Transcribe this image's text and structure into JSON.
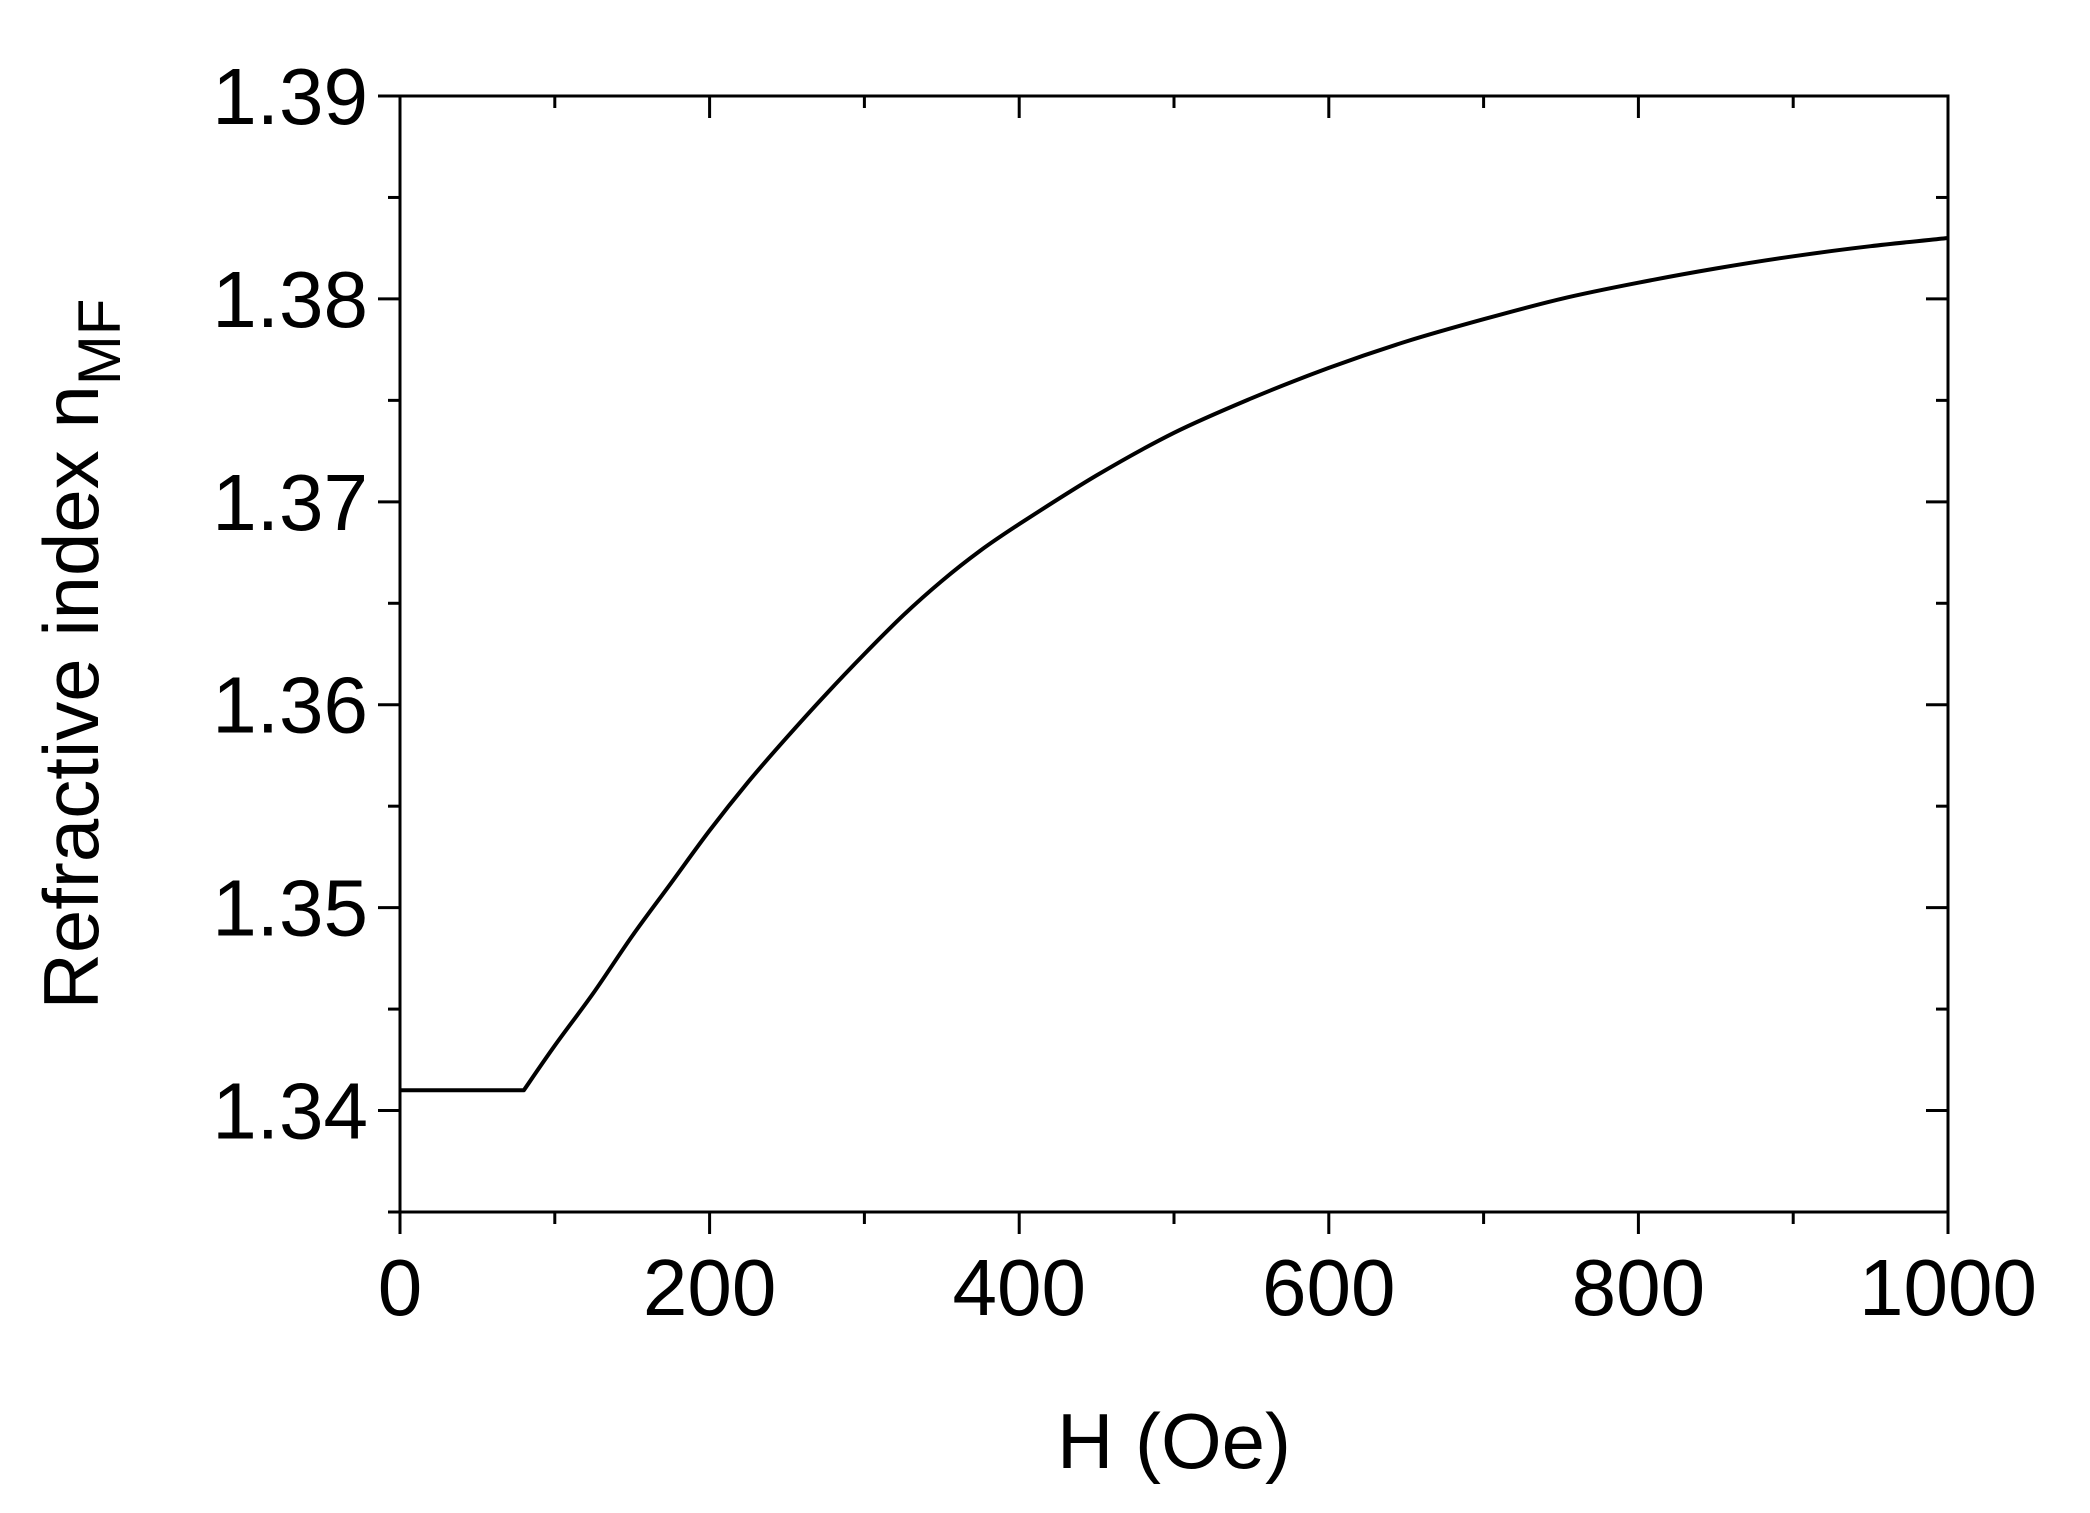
{
  "chart_data": {
    "type": "line",
    "title": "",
    "xlabel": "H (Oe)",
    "ylabel_main": "Refractive index n",
    "ylabel_subscript": "MF",
    "xlim": [
      0,
      1000
    ],
    "ylim": [
      1.335,
      1.39
    ],
    "xticks": [
      0,
      200,
      400,
      600,
      800,
      1000
    ],
    "xtick_labels": [
      "0",
      "200",
      "400",
      "600",
      "800",
      "1000"
    ],
    "yticks": [
      1.34,
      1.35,
      1.36,
      1.37,
      1.38,
      1.39
    ],
    "ytick_labels": [
      "1.34",
      "1.35",
      "1.36",
      "1.37",
      "1.38",
      "1.39"
    ],
    "grid": false,
    "legend": "none",
    "line_color": "#000000",
    "series": [
      {
        "x": [
          0,
          80,
          100,
          125,
          150,
          175,
          200,
          225,
          250,
          275,
          300,
          325,
          350,
          375,
          400,
          450,
          500,
          550,
          600,
          650,
          700,
          750,
          800,
          850,
          900,
          950,
          1000
        ],
        "y": [
          1.341,
          1.341,
          1.3432,
          1.3458,
          1.3486,
          1.3512,
          1.3538,
          1.3562,
          1.3584,
          1.3605,
          1.3625,
          1.3644,
          1.3661,
          1.3676,
          1.3689,
          1.3713,
          1.3734,
          1.3751,
          1.3766,
          1.3779,
          1.379,
          1.38,
          1.3808,
          1.3815,
          1.3821,
          1.3826,
          1.383
        ]
      }
    ]
  }
}
